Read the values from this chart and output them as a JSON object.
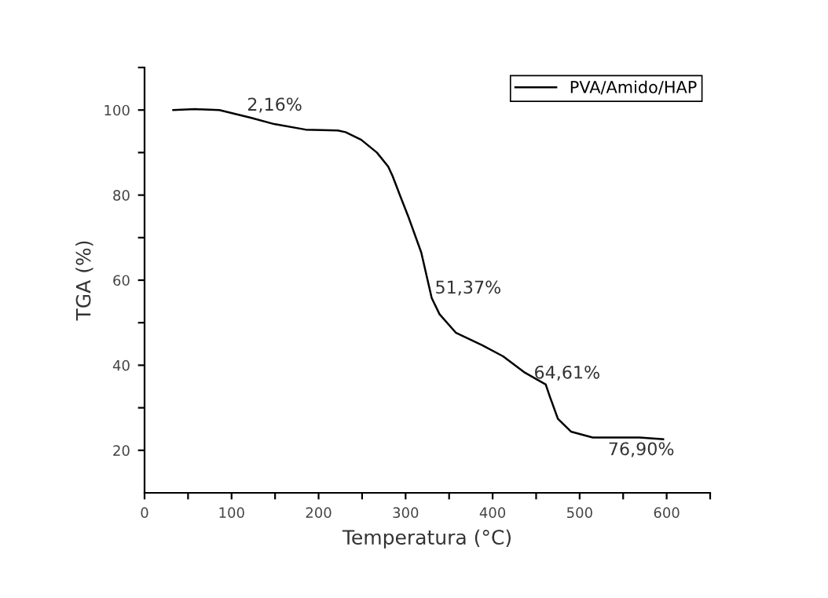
{
  "chart_data": {
    "type": "line",
    "xlabel": "Temperatura (°C)",
    "ylabel": "TGA (%)",
    "series": [
      {
        "name": "PVA/Amido/HAP",
        "color": "#000000",
        "x": [
          33,
          58,
          86,
          122,
          149,
          185,
          222,
          231,
          249,
          267,
          280,
          285,
          294,
          303,
          318,
          330,
          339,
          358,
          388,
          412,
          436,
          461,
          466,
          475,
          490,
          515,
          539,
          569,
          596
        ],
        "values": [
          100,
          100.2,
          100,
          98.2,
          96.7,
          95.4,
          95.2,
          94.8,
          93,
          90,
          86.7,
          84.5,
          79.7,
          75,
          66.5,
          55.8,
          52,
          47.6,
          44.7,
          42.1,
          38.4,
          35.5,
          32.5,
          27.4,
          24.4,
          23,
          23,
          23,
          22.6
        ]
      }
    ],
    "annotations": [
      "2,16%",
      "51,37%",
      "64,61%",
      "76,90%"
    ],
    "xlim": [
      0,
      650
    ],
    "ylim": [
      10,
      110
    ],
    "xticks": [
      0,
      {
        "value": 50,
        "label": null
      },
      100,
      {
        "value": 150,
        "label": null
      },
      200,
      {
        "value": 250,
        "label": null
      },
      300,
      {
        "value": 350,
        "label": null
      },
      400,
      {
        "value": 450,
        "label": null
      },
      500,
      {
        "value": 550,
        "label": null
      },
      600,
      {
        "value": 650,
        "label": null
      }
    ],
    "yticks": [
      20,
      {
        "value": 30,
        "label": null
      },
      40,
      {
        "value": 50,
        "label": null
      },
      60,
      {
        "value": 70,
        "label": null
      },
      80,
      {
        "value": 90,
        "label": null
      },
      100,
      {
        "value": 110,
        "label": null
      }
    ],
    "legend": "top right",
    "grid": false,
    "line_style": "solid",
    "marker": "none"
  }
}
